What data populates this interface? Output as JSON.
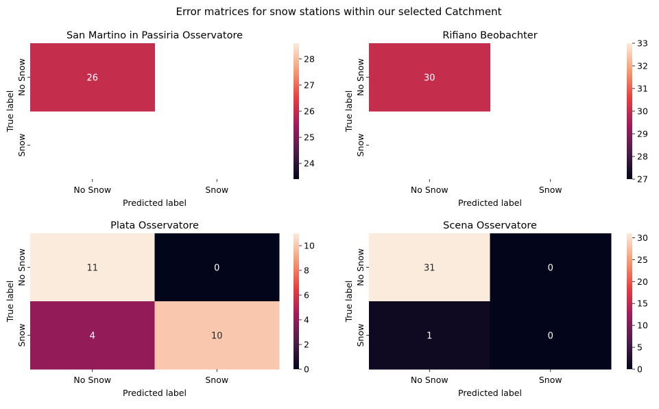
{
  "suptitle": "Error matrices for snow stations within our selected Catchment",
  "chart_data": [
    {
      "type": "heatmap",
      "title": "San Martino in Passiria Osservatore",
      "xlabel": "Predicted label",
      "ylabel": "True label",
      "x_categories": [
        "No Snow",
        "Snow"
      ],
      "y_categories": [
        "No Snow",
        "Snow"
      ],
      "values": [
        [
          26,
          null
        ],
        [
          null,
          null
        ]
      ],
      "annotations": [
        [
          "26",
          ""
        ],
        [
          "",
          ""
        ]
      ],
      "colorbar": {
        "vmin": 23.4,
        "vmax": 28.6,
        "ticks": [
          24,
          25,
          26,
          27,
          28
        ]
      }
    },
    {
      "type": "heatmap",
      "title": "Rifiano Beobachter",
      "xlabel": "Predicted label",
      "ylabel": "True label",
      "x_categories": [
        "No Snow",
        "Snow"
      ],
      "y_categories": [
        "No Snow",
        "Snow"
      ],
      "values": [
        [
          30,
          null
        ],
        [
          null,
          null
        ]
      ],
      "annotations": [
        [
          "30",
          ""
        ],
        [
          "",
          ""
        ]
      ],
      "colorbar": {
        "vmin": 27,
        "vmax": 33,
        "ticks": [
          27,
          28,
          29,
          30,
          31,
          32,
          33
        ]
      }
    },
    {
      "type": "heatmap",
      "title": "Plata Osservatore",
      "xlabel": "Predicted label",
      "ylabel": "True label",
      "x_categories": [
        "No Snow",
        "Snow"
      ],
      "y_categories": [
        "No Snow",
        "Snow"
      ],
      "values": [
        [
          11,
          0
        ],
        [
          4,
          10
        ]
      ],
      "annotations": [
        [
          "11",
          "0"
        ],
        [
          "4",
          "10"
        ]
      ],
      "colorbar": {
        "vmin": 0,
        "vmax": 11,
        "ticks": [
          0,
          2,
          4,
          6,
          8,
          10
        ]
      }
    },
    {
      "type": "heatmap",
      "title": "Scena Osservatore",
      "xlabel": "Predicted label",
      "ylabel": "True label",
      "x_categories": [
        "No Snow",
        "Snow"
      ],
      "y_categories": [
        "No Snow",
        "Snow"
      ],
      "values": [
        [
          31,
          0
        ],
        [
          1,
          0
        ]
      ],
      "annotations": [
        [
          "31",
          "0"
        ],
        [
          "1",
          "0"
        ]
      ],
      "colorbar": {
        "vmin": 0,
        "vmax": 31,
        "ticks": [
          0,
          5,
          10,
          15,
          20,
          25,
          30
        ]
      }
    }
  ],
  "colormap": [
    "#03051a",
    "#4c1d4b",
    "#a11a5b",
    "#e83f3f",
    "#f69c73",
    "#faebdd"
  ]
}
